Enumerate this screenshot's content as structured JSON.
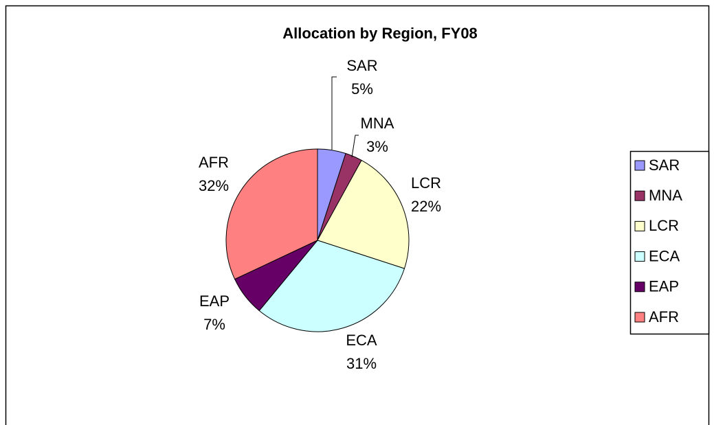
{
  "chart_data": {
    "type": "pie",
    "title": "Allocation by Region, FY08",
    "categories": [
      "SAR",
      "MNA",
      "LCR",
      "ECA",
      "EAP",
      "AFR"
    ],
    "values": [
      5,
      3,
      22,
      31,
      7,
      32
    ],
    "value_labels": [
      "5%",
      "3%",
      "22%",
      "31%",
      "7%",
      "32%"
    ],
    "colors": [
      "#9999ff",
      "#993366",
      "#ffffcc",
      "#ccffff",
      "#660066",
      "#ff8080"
    ],
    "legend": "right"
  }
}
